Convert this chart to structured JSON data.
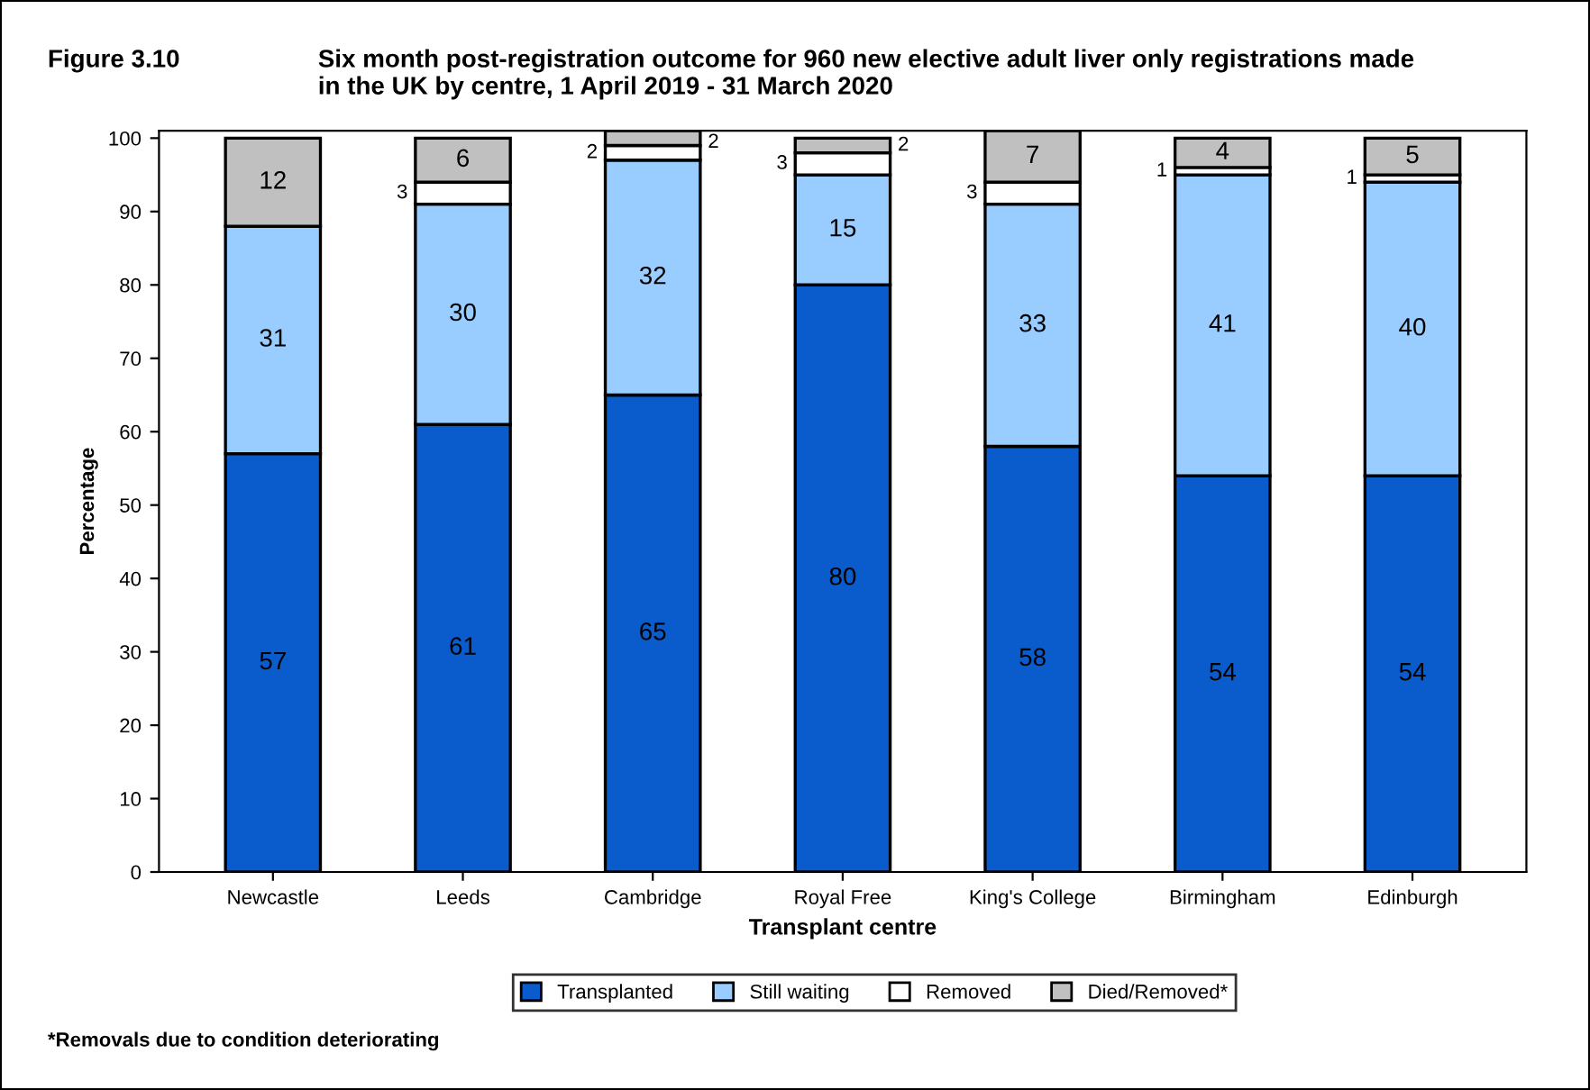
{
  "chart_data": {
    "type": "bar",
    "title": "Figure 3.10",
    "subtitle": "Six month post-registration outcome for 960 new elective adult liver only registrations made\nin the UK by centre, 1 April 2019 - 31 March 2020",
    "xlabel": "Transplant centre",
    "ylabel": "Percentage",
    "categories": [
      "Newcastle",
      "Leeds",
      "Cambridge",
      "Royal Free",
      "King's College",
      "Birmingham",
      "Edinburgh"
    ],
    "stacked": true,
    "series": [
      {
        "name": "Transplanted",
        "color": "#0a5ccc",
        "values": [
          57,
          61,
          65,
          80,
          58,
          54,
          54
        ],
        "value_labels": [
          "57",
          "61",
          "65",
          "80",
          "58",
          "54",
          "54"
        ]
      },
      {
        "name": "Still waiting",
        "color": "#99ccff",
        "values": [
          31,
          30,
          32,
          15,
          33,
          41,
          40
        ],
        "value_labels": [
          "31",
          "30",
          "32",
          "15",
          "33",
          "41",
          "40"
        ]
      },
      {
        "name": "Removed",
        "color": "#ffffff",
        "values": [
          0,
          3,
          2,
          3,
          3,
          1,
          1
        ],
        "value_labels": [
          null,
          "3",
          "2",
          "3",
          "3",
          "1",
          "1"
        ]
      },
      {
        "name": "Died/Removed*",
        "color": "#c0c0c0",
        "values": [
          12,
          6,
          2,
          2,
          7,
          4,
          5
        ],
        "value_labels": [
          "12",
          "6",
          "2",
          "2",
          "7",
          "4",
          "5"
        ]
      }
    ],
    "ylim": [
      0,
      101
    ],
    "yticks": [
      0,
      10,
      20,
      30,
      40,
      50,
      60,
      70,
      80,
      90,
      100
    ],
    "grid": false,
    "legend": "bottom",
    "annotations": [
      "*Removals due to condition deteriorating"
    ]
  }
}
